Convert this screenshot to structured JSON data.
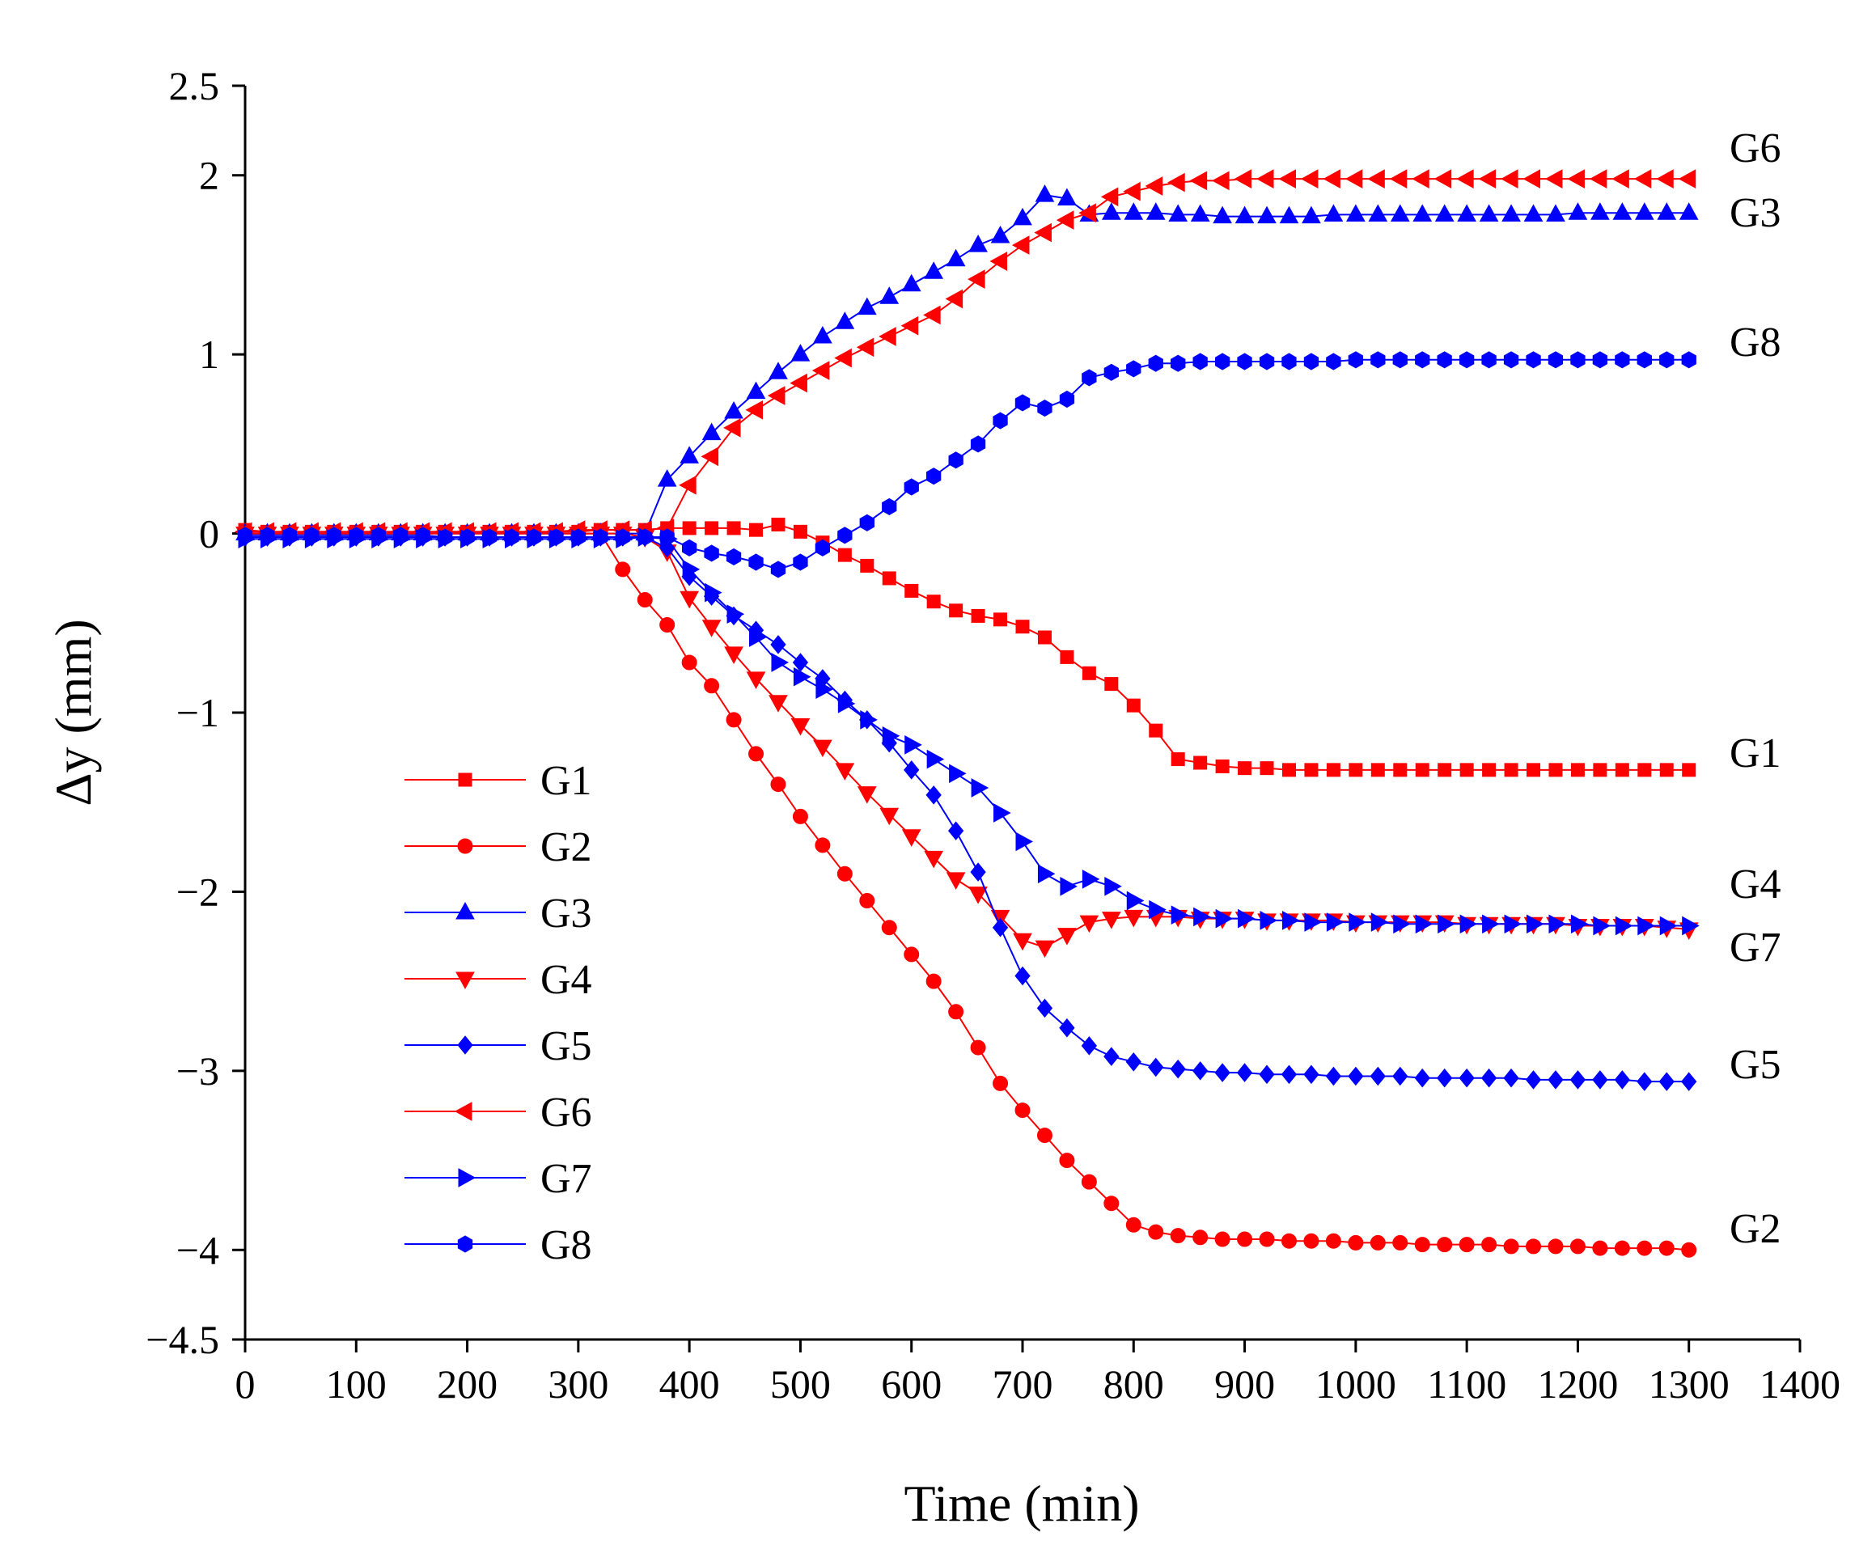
{
  "chart_data": {
    "type": "line",
    "title": "",
    "xlabel": "Time (min)",
    "ylabel": "Δy (mm)",
    "xlim": [
      0,
      1400
    ],
    "ylim": [
      -4.5,
      2.5
    ],
    "xticks": [
      0,
      100,
      200,
      300,
      400,
      500,
      600,
      700,
      800,
      900,
      1000,
      1100,
      1200,
      1300,
      1400
    ],
    "xtick_labels": [
      "0",
      "100",
      "200",
      "300",
      "400",
      "500",
      "600",
      "700",
      "800",
      "900",
      "1000",
      "1100",
      "1200",
      "1300",
      "1400"
    ],
    "yticks": [
      2.5,
      2,
      1,
      0,
      -1,
      -2,
      -3,
      -4,
      -4.5
    ],
    "ytick_labels": [
      "2.5",
      "2",
      "1",
      "0",
      "−1",
      "−2",
      "−3",
      "−4",
      "−4.5"
    ],
    "grid": false,
    "legend_position": "lower-left",
    "series": [
      {
        "name": "G1",
        "color": "#ff0000",
        "marker": "square",
        "end_label": "G1",
        "x": [
          0,
          20,
          40,
          60,
          80,
          100,
          120,
          140,
          160,
          180,
          200,
          220,
          240,
          260,
          280,
          300,
          320,
          340,
          360,
          380,
          400,
          420,
          440,
          460,
          480,
          500,
          520,
          540,
          560,
          580,
          600,
          620,
          640,
          660,
          680,
          700,
          720,
          740,
          760,
          780,
          800,
          820,
          840,
          860,
          880,
          900,
          920,
          940,
          960,
          980,
          1000,
          1020,
          1040,
          1060,
          1080,
          1100,
          1120,
          1140,
          1160,
          1180,
          1200,
          1220,
          1240,
          1260,
          1280,
          1300
        ],
        "values": [
          0.02,
          0.01,
          0.01,
          0.01,
          0.01,
          0.01,
          0.01,
          0.01,
          0.01,
          0.01,
          0.01,
          0.01,
          0.01,
          0.01,
          0.01,
          0.01,
          0.02,
          0.02,
          0.02,
          0.03,
          0.03,
          0.03,
          0.03,
          0.02,
          0.05,
          0.01,
          -0.05,
          -0.12,
          -0.18,
          -0.25,
          -0.32,
          -0.38,
          -0.43,
          -0.46,
          -0.48,
          -0.52,
          -0.58,
          -0.69,
          -0.78,
          -0.84,
          -0.96,
          -1.1,
          -1.26,
          -1.28,
          -1.3,
          -1.31,
          -1.31,
          -1.32,
          -1.32,
          -1.32,
          -1.32,
          -1.32,
          -1.32,
          -1.32,
          -1.32,
          -1.32,
          -1.32,
          -1.32,
          -1.32,
          -1.32,
          -1.32,
          -1.32,
          -1.32,
          -1.32,
          -1.32,
          -1.32
        ]
      },
      {
        "name": "G2",
        "color": "#ff0000",
        "marker": "circle",
        "end_label": "G2",
        "x": [
          0,
          20,
          40,
          60,
          80,
          100,
          120,
          140,
          160,
          180,
          200,
          220,
          240,
          260,
          280,
          300,
          320,
          340,
          360,
          380,
          400,
          420,
          440,
          460,
          480,
          500,
          520,
          540,
          560,
          580,
          600,
          620,
          640,
          660,
          680,
          700,
          720,
          740,
          760,
          780,
          800,
          820,
          840,
          860,
          880,
          900,
          920,
          940,
          960,
          980,
          1000,
          1020,
          1040,
          1060,
          1080,
          1100,
          1120,
          1140,
          1160,
          1180,
          1200,
          1220,
          1240,
          1260,
          1280,
          1300
        ],
        "values": [
          0,
          0,
          0,
          0,
          0,
          0,
          0,
          0,
          0,
          0,
          0,
          0,
          0,
          0,
          0,
          0,
          0,
          -0.2,
          -0.37,
          -0.51,
          -0.72,
          -0.85,
          -1.04,
          -1.23,
          -1.4,
          -1.58,
          -1.74,
          -1.9,
          -2.05,
          -2.2,
          -2.35,
          -2.5,
          -2.67,
          -2.87,
          -3.07,
          -3.22,
          -3.36,
          -3.5,
          -3.62,
          -3.74,
          -3.86,
          -3.9,
          -3.92,
          -3.93,
          -3.94,
          -3.94,
          -3.94,
          -3.95,
          -3.95,
          -3.95,
          -3.96,
          -3.96,
          -3.96,
          -3.97,
          -3.97,
          -3.97,
          -3.97,
          -3.98,
          -3.98,
          -3.98,
          -3.98,
          -3.99,
          -3.99,
          -3.99,
          -3.99,
          -4.0
        ]
      },
      {
        "name": "G3",
        "color": "#0000ff",
        "marker": "triangle-up",
        "end_label": "G3",
        "x": [
          0,
          20,
          40,
          60,
          80,
          100,
          120,
          140,
          160,
          180,
          200,
          220,
          240,
          260,
          280,
          300,
          320,
          340,
          360,
          380,
          400,
          420,
          440,
          460,
          480,
          500,
          520,
          540,
          560,
          580,
          600,
          620,
          640,
          660,
          680,
          700,
          720,
          740,
          760,
          780,
          800,
          820,
          840,
          860,
          880,
          900,
          920,
          940,
          960,
          980,
          1000,
          1020,
          1040,
          1060,
          1080,
          1100,
          1120,
          1140,
          1160,
          1180,
          1200,
          1220,
          1240,
          1260,
          1280,
          1300
        ],
        "values": [
          0,
          0,
          0,
          0,
          0,
          0,
          0,
          0,
          0,
          0,
          0,
          0,
          0,
          0,
          0,
          0,
          0,
          0,
          0,
          0.3,
          0.43,
          0.56,
          0.68,
          0.79,
          0.9,
          1.0,
          1.1,
          1.18,
          1.26,
          1.32,
          1.39,
          1.46,
          1.53,
          1.61,
          1.66,
          1.76,
          1.89,
          1.87,
          1.78,
          1.79,
          1.79,
          1.79,
          1.78,
          1.78,
          1.77,
          1.77,
          1.77,
          1.77,
          1.77,
          1.78,
          1.78,
          1.78,
          1.78,
          1.78,
          1.78,
          1.78,
          1.78,
          1.78,
          1.78,
          1.78,
          1.79,
          1.79,
          1.79,
          1.79,
          1.79,
          1.79
        ]
      },
      {
        "name": "G4",
        "color": "#ff0000",
        "marker": "triangle-down",
        "end_label": "G4",
        "x": [
          0,
          20,
          40,
          60,
          80,
          100,
          120,
          140,
          160,
          180,
          200,
          220,
          240,
          260,
          280,
          300,
          320,
          340,
          360,
          380,
          400,
          420,
          440,
          460,
          480,
          500,
          520,
          540,
          560,
          580,
          600,
          620,
          640,
          660,
          680,
          700,
          720,
          740,
          760,
          780,
          800,
          820,
          840,
          860,
          880,
          900,
          920,
          940,
          960,
          980,
          1000,
          1020,
          1040,
          1060,
          1080,
          1100,
          1120,
          1140,
          1160,
          1180,
          1200,
          1220,
          1240,
          1260,
          1280,
          1300
        ],
        "values": [
          0,
          0,
          0,
          0,
          0,
          0,
          0,
          0,
          0,
          0,
          0,
          0,
          0,
          0,
          0,
          0,
          0,
          0,
          -0.02,
          -0.1,
          -0.36,
          -0.52,
          -0.67,
          -0.81,
          -0.94,
          -1.07,
          -1.19,
          -1.32,
          -1.45,
          -1.57,
          -1.69,
          -1.81,
          -1.93,
          -2.01,
          -2.14,
          -2.27,
          -2.31,
          -2.24,
          -2.17,
          -2.15,
          -2.14,
          -2.14,
          -2.14,
          -2.15,
          -2.15,
          -2.15,
          -2.16,
          -2.16,
          -2.16,
          -2.16,
          -2.17,
          -2.17,
          -2.17,
          -2.17,
          -2.17,
          -2.18,
          -2.18,
          -2.18,
          -2.18,
          -2.18,
          -2.19,
          -2.19,
          -2.19,
          -2.19,
          -2.2,
          -2.21
        ]
      },
      {
        "name": "G5",
        "color": "#0000ff",
        "marker": "diamond",
        "end_label": "G5",
        "x": [
          0,
          20,
          40,
          60,
          80,
          100,
          120,
          140,
          160,
          180,
          200,
          220,
          240,
          260,
          280,
          300,
          320,
          340,
          360,
          380,
          400,
          420,
          440,
          460,
          480,
          500,
          520,
          540,
          560,
          580,
          600,
          620,
          640,
          660,
          680,
          700,
          720,
          740,
          760,
          780,
          800,
          820,
          840,
          860,
          880,
          900,
          920,
          940,
          960,
          980,
          1000,
          1020,
          1040,
          1060,
          1080,
          1100,
          1120,
          1140,
          1160,
          1180,
          1200,
          1220,
          1240,
          1260,
          1280,
          1300
        ],
        "values": [
          -0.02,
          -0.02,
          -0.02,
          -0.02,
          -0.02,
          -0.02,
          -0.02,
          -0.02,
          -0.02,
          -0.02,
          -0.02,
          -0.02,
          -0.02,
          -0.02,
          -0.02,
          -0.02,
          -0.02,
          -0.02,
          -0.02,
          -0.08,
          -0.24,
          -0.35,
          -0.46,
          -0.54,
          -0.62,
          -0.72,
          -0.81,
          -0.93,
          -1.04,
          -1.17,
          -1.32,
          -1.46,
          -1.66,
          -1.89,
          -2.2,
          -2.47,
          -2.65,
          -2.76,
          -2.86,
          -2.92,
          -2.95,
          -2.98,
          -2.99,
          -3.0,
          -3.01,
          -3.01,
          -3.02,
          -3.02,
          -3.02,
          -3.03,
          -3.03,
          -3.03,
          -3.03,
          -3.04,
          -3.04,
          -3.04,
          -3.04,
          -3.04,
          -3.05,
          -3.05,
          -3.05,
          -3.05,
          -3.05,
          -3.06,
          -3.06,
          -3.06
        ]
      },
      {
        "name": "G6",
        "color": "#ff0000",
        "marker": "triangle-left",
        "end_label": "G6",
        "x": [
          0,
          20,
          40,
          60,
          80,
          100,
          120,
          140,
          160,
          180,
          200,
          220,
          240,
          260,
          280,
          300,
          320,
          340,
          360,
          380,
          400,
          420,
          440,
          460,
          480,
          500,
          520,
          540,
          560,
          580,
          600,
          620,
          640,
          660,
          680,
          700,
          720,
          740,
          760,
          780,
          800,
          820,
          840,
          860,
          880,
          900,
          920,
          940,
          960,
          980,
          1000,
          1020,
          1040,
          1060,
          1080,
          1100,
          1120,
          1140,
          1160,
          1180,
          1200,
          1220,
          1240,
          1260,
          1280,
          1300
        ],
        "values": [
          0.01,
          0.01,
          0.01,
          0.01,
          0.01,
          0.01,
          0.01,
          0.01,
          0.01,
          0.01,
          0.01,
          0.01,
          0.01,
          0.01,
          0.01,
          0.02,
          0.02,
          0.02,
          0.02,
          0.03,
          0.27,
          0.43,
          0.59,
          0.69,
          0.77,
          0.84,
          0.91,
          0.98,
          1.04,
          1.1,
          1.16,
          1.22,
          1.31,
          1.42,
          1.52,
          1.61,
          1.68,
          1.75,
          1.79,
          1.88,
          1.91,
          1.94,
          1.96,
          1.97,
          1.97,
          1.98,
          1.98,
          1.98,
          1.98,
          1.98,
          1.98,
          1.98,
          1.98,
          1.98,
          1.98,
          1.98,
          1.98,
          1.98,
          1.98,
          1.98,
          1.98,
          1.98,
          1.98,
          1.98,
          1.98,
          1.98
        ]
      },
      {
        "name": "G7",
        "color": "#0000ff",
        "marker": "triangle-right",
        "end_label": "G7",
        "x": [
          0,
          20,
          40,
          60,
          80,
          100,
          120,
          140,
          160,
          180,
          200,
          220,
          240,
          260,
          280,
          300,
          320,
          340,
          360,
          380,
          400,
          420,
          440,
          460,
          480,
          500,
          520,
          540,
          560,
          580,
          600,
          620,
          640,
          660,
          680,
          700,
          720,
          740,
          760,
          780,
          800,
          820,
          840,
          860,
          880,
          900,
          920,
          940,
          960,
          980,
          1000,
          1020,
          1040,
          1060,
          1080,
          1100,
          1120,
          1140,
          1160,
          1180,
          1200,
          1220,
          1240,
          1260,
          1280,
          1300
        ],
        "values": [
          -0.03,
          -0.03,
          -0.03,
          -0.03,
          -0.03,
          -0.03,
          -0.03,
          -0.03,
          -0.03,
          -0.03,
          -0.03,
          -0.03,
          -0.03,
          -0.03,
          -0.03,
          -0.03,
          -0.03,
          -0.03,
          -0.02,
          -0.03,
          -0.2,
          -0.33,
          -0.45,
          -0.58,
          -0.72,
          -0.8,
          -0.87,
          -0.95,
          -1.04,
          -1.13,
          -1.18,
          -1.26,
          -1.34,
          -1.42,
          -1.56,
          -1.72,
          -1.9,
          -1.97,
          -1.93,
          -1.97,
          -2.05,
          -2.1,
          -2.13,
          -2.14,
          -2.15,
          -2.15,
          -2.16,
          -2.16,
          -2.17,
          -2.17,
          -2.17,
          -2.17,
          -2.18,
          -2.18,
          -2.18,
          -2.18,
          -2.18,
          -2.18,
          -2.18,
          -2.18,
          -2.18,
          -2.19,
          -2.19,
          -2.19,
          -2.19,
          -2.19
        ]
      },
      {
        "name": "G8",
        "color": "#0000ff",
        "marker": "hexagon",
        "end_label": "G8",
        "x": [
          0,
          20,
          40,
          60,
          80,
          100,
          120,
          140,
          160,
          180,
          200,
          220,
          240,
          260,
          280,
          300,
          320,
          340,
          360,
          380,
          400,
          420,
          440,
          460,
          480,
          500,
          520,
          540,
          560,
          580,
          600,
          620,
          640,
          660,
          680,
          700,
          720,
          740,
          760,
          780,
          800,
          820,
          840,
          860,
          880,
          900,
          920,
          940,
          960,
          980,
          1000,
          1020,
          1040,
          1060,
          1080,
          1100,
          1120,
          1140,
          1160,
          1180,
          1200,
          1220,
          1240,
          1260,
          1280,
          1300
        ],
        "values": [
          -0.01,
          -0.01,
          -0.01,
          -0.01,
          -0.01,
          -0.01,
          -0.01,
          -0.01,
          -0.01,
          -0.02,
          -0.02,
          -0.02,
          -0.02,
          -0.02,
          -0.02,
          -0.02,
          -0.02,
          -0.02,
          -0.02,
          -0.02,
          -0.08,
          -0.11,
          -0.13,
          -0.16,
          -0.2,
          -0.16,
          -0.08,
          -0.01,
          0.06,
          0.15,
          0.26,
          0.32,
          0.41,
          0.5,
          0.63,
          0.73,
          0.7,
          0.75,
          0.87,
          0.9,
          0.92,
          0.95,
          0.95,
          0.96,
          0.96,
          0.96,
          0.96,
          0.96,
          0.96,
          0.96,
          0.97,
          0.97,
          0.97,
          0.97,
          0.97,
          0.97,
          0.97,
          0.97,
          0.97,
          0.97,
          0.97,
          0.97,
          0.97,
          0.97,
          0.97,
          0.97
        ]
      }
    ]
  }
}
